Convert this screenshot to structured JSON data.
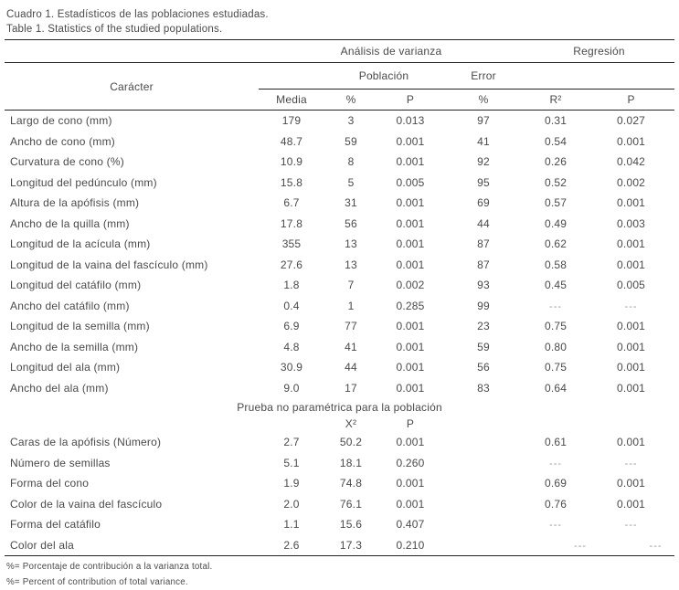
{
  "caption": {
    "line1": "Cuadro 1. Estadísticos de las poblaciones estudiadas.",
    "line2": "Table 1. Statistics of the studied populations."
  },
  "table": {
    "group_anova": "Análisis de varianza",
    "group_regression": "Regresión",
    "caracter": "Carácter",
    "poblacion": "Población",
    "error": "Error",
    "cols": [
      "Media",
      "%",
      "P",
      "%",
      "R²",
      "P"
    ],
    "rows": [
      [
        "Largo de cono (mm)",
        "179",
        "3",
        "0.013",
        "97",
        "0.31",
        "0.027"
      ],
      [
        "Ancho de cono (mm)",
        "48.7",
        "59",
        "0.001",
        "41",
        "0.54",
        "0.001"
      ],
      [
        "Curvatura de cono (%)",
        "10.9",
        "8",
        "0.001",
        "92",
        "0.26",
        "0.042"
      ],
      [
        "Longitud del pedúnculo (mm)",
        "15.8",
        "5",
        "0.005",
        "95",
        "0.52",
        "0.002"
      ],
      [
        "Altura de la apófisis (mm)",
        "6.7",
        "31",
        "0.001",
        "69",
        "0.57",
        "0.001"
      ],
      [
        "Ancho de la quilla (mm)",
        "17.8",
        "56",
        "0.001",
        "44",
        "0.49",
        "0.003"
      ],
      [
        "Longitud de la acícula (mm)",
        "355",
        "13",
        "0.001",
        "87",
        "0.62",
        "0.001"
      ],
      [
        "Longitud de la vaina del fascículo (mm)",
        "27.6",
        "13",
        "0.001",
        "87",
        "0.58",
        "0.001"
      ],
      [
        "Longitud del catáfilo (mm)",
        "1.8",
        "7",
        "0.002",
        "93",
        "0.45",
        "0.005"
      ],
      [
        "Ancho del catáfilo (mm)",
        "0.4",
        "1",
        "0.285",
        "99",
        "---",
        "---"
      ],
      [
        "Longitud de la semilla (mm)",
        "6.9",
        "77",
        "0.001",
        "23",
        "0.75",
        "0.001"
      ],
      [
        "Ancho de la semilla (mm)",
        "4.8",
        "41",
        "0.001",
        "59",
        "0.80",
        "0.001"
      ],
      [
        "Longitud del ala (mm)",
        "30.9",
        "44",
        "0.001",
        "56",
        "0.75",
        "0.001"
      ],
      [
        "Ancho del ala (mm)",
        "9.0",
        "17",
        "0.001",
        "83",
        "0.64",
        "0.001"
      ]
    ],
    "nonparam": {
      "title": "Prueba no paramétrica para la población",
      "col_x2": "X²",
      "col_p": "P",
      "rows": [
        [
          "Caras de la apófisis (Número)",
          "2.7",
          "50.2",
          "0.001",
          "",
          "0.61",
          "0.001"
        ],
        [
          "Número de semillas",
          "5.1",
          "18.1",
          "0.260",
          "",
          "---",
          "---"
        ],
        [
          "Forma del cono",
          "1.9",
          "74.8",
          "0.001",
          "",
          "0.69",
          "0.001"
        ],
        [
          "Color de la vaina del fascículo",
          "2.0",
          "76.1",
          "0.001",
          "",
          "0.76",
          "0.001"
        ],
        [
          "Forma del catáfilo",
          "1.1",
          "15.6",
          "0.407",
          "",
          "---",
          "---"
        ],
        [
          "Color del ala",
          "2.6",
          "17.3",
          "0.210",
          "",
          "---",
          "---"
        ]
      ]
    }
  },
  "footnotes": {
    "line1": "%= Porcentaje de contribución a la varianza total.",
    "line2": "%= Percent of contribution of total variance."
  },
  "colors": {
    "background": "#ffffff",
    "text": "#4a4a4a",
    "rule": "#242424",
    "dash": "#9a9a9a"
  }
}
